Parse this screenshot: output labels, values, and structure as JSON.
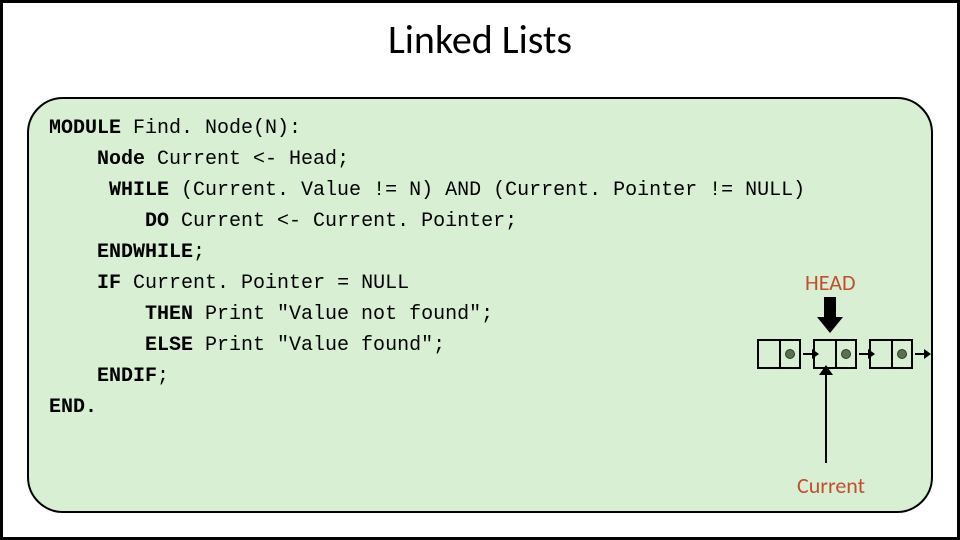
{
  "title": "Linked Lists",
  "code": {
    "l1_kw": "MODULE",
    "l1_rest": " Find. Node(N):",
    "l2_kw": "Node",
    "l2_rest": " Current <- Head;",
    "l3_kw": "WHILE",
    "l3_rest": " (Current. Value != N) AND (Current. Pointer != NULL)",
    "l4_kw": "DO",
    "l4_rest": " Current <- Current. Pointer;",
    "l5_kw": "ENDWHILE",
    "l5_rest": ";",
    "l6_kw": "IF",
    "l6_rest": " Current. Pointer = NULL",
    "l7_kw": "THEN",
    "l7_rest": " Print \"Value not found\";",
    "l8_kw": "ELSE",
    "l8_rest": " Print \"Value found\";",
    "l9_kw": "ENDIF",
    "l9_rest": ";",
    "l10_kw": "END."
  },
  "diagram": {
    "head_label": "HEAD",
    "current_label": "Current",
    "node_count": 3,
    "colors": {
      "panel_bg": "#d8efd3",
      "border": "#000000",
      "label": "#be5030",
      "dot_fill": "#5b7050",
      "dot_border": "#2f4025"
    }
  },
  "style": {
    "slide_border": "#000000",
    "title_fontsize": 40,
    "code_fontsize": 20,
    "code_font": "Courier New",
    "panel_radius": 36
  }
}
